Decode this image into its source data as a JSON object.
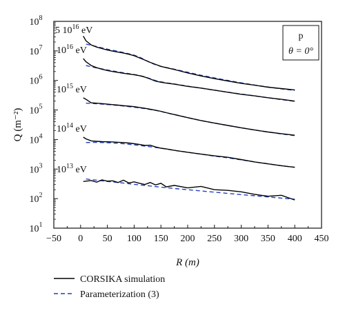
{
  "chart_data": {
    "type": "line",
    "xlabel": "R (m)",
    "ylabel": "Q (m⁻²)",
    "xlim": [
      -50,
      450
    ],
    "ylim_log10": [
      1,
      8
    ],
    "y_scale": "log",
    "grid": false,
    "x_ticks": [
      -50,
      0,
      50,
      100,
      150,
      200,
      250,
      300,
      350,
      400,
      450
    ],
    "y_ticks": [
      {
        "mantissa": "10",
        "exp": "1"
      },
      {
        "mantissa": "10",
        "exp": "2"
      },
      {
        "mantissa": "10",
        "exp": "3"
      },
      {
        "mantissa": "10",
        "exp": "4"
      },
      {
        "mantissa": "10",
        "exp": "5"
      },
      {
        "mantissa": "10",
        "exp": "6"
      },
      {
        "mantissa": "10",
        "exp": "7"
      },
      {
        "mantissa": "10",
        "exp": "8"
      }
    ],
    "annotation_box": {
      "line1": "p",
      "line2": "θ = 0°"
    },
    "energy_labels": [
      {
        "prefix": "5 10",
        "exp": "16",
        "unit": " eV"
      },
      {
        "prefix": "10",
        "exp": "16",
        "unit": " eV"
      },
      {
        "prefix": "10",
        "exp": "15",
        "unit": " eV"
      },
      {
        "prefix": "10",
        "exp": "14",
        "unit": " eV"
      },
      {
        "prefix": "10",
        "exp": "13",
        "unit": " eV"
      }
    ],
    "legend": {
      "placement": "bottom-left",
      "items": [
        {
          "label": "CORSIKA simulation",
          "style": "solid",
          "color": "#000000"
        },
        {
          "label": "Parameterization (3)",
          "style": "dashed",
          "color": "#1f3fbf"
        }
      ]
    },
    "x": [
      5,
      10,
      20,
      30,
      40,
      50,
      60,
      70,
      80,
      90,
      100,
      110,
      120,
      130,
      140,
      150,
      160,
      175,
      200,
      225,
      250,
      275,
      300,
      325,
      350,
      375,
      400
    ],
    "groups": [
      {
        "energy": "5 10^16 eV",
        "simulation": [
          31600000,
          22000000,
          15800000,
          13500000,
          12000000,
          10700000,
          9800000,
          9100000,
          8500000,
          7700000,
          6900000,
          5800000,
          4900000,
          4100000,
          3500000,
          3000000,
          2700000,
          2350000,
          1800000,
          1420000,
          1150000,
          960000,
          800000,
          690000,
          590000,
          530000,
          480000
        ],
        "parameterization": [
          null,
          17000000,
          15500000,
          14000000,
          12700000,
          11500000,
          10500000,
          9600000,
          8800000,
          8000000,
          7200000,
          6200000,
          5000000,
          4000000,
          3400000,
          3000000,
          2750000,
          2400000,
          1900000,
          1500000,
          1220000,
          1000000,
          830000,
          700000,
          600000,
          520000,
          460000
        ]
      },
      {
        "energy": "10^16 eV",
        "simulation": [
          5500000,
          4300000,
          3200000,
          2700000,
          2400000,
          2170000,
          2000000,
          1870000,
          1750000,
          1650000,
          1560000,
          1450000,
          1300000,
          1120000,
          950000,
          870000,
          810000,
          750000,
          630000,
          550000,
          470000,
          400000,
          340000,
          300000,
          260000,
          230000,
          200000
        ],
        "parameterization": [
          null,
          3200000,
          2900000,
          2650000,
          2450000,
          2270000,
          2100000,
          1950000,
          1820000,
          1700000,
          1590000,
          1470000,
          1320000,
          1150000,
          990000,
          900000,
          830000,
          760000,
          640000,
          550000,
          470000,
          400000,
          345000,
          300000,
          260000,
          225000,
          195000
        ]
      },
      {
        "energy": "10^15 eV",
        "simulation": [
          260000,
          230000,
          175000,
          170000,
          165000,
          158000,
          152000,
          146000,
          140000,
          135000,
          130000,
          122000,
          114000,
          106000,
          98000,
          90000,
          81000,
          70000,
          55000,
          44000,
          36000,
          30000,
          25000,
          21000,
          18000,
          15800,
          14000
        ],
        "parameterization": [
          null,
          170000,
          167000,
          163000,
          158000,
          153000,
          148000,
          142000,
          136000,
          130000,
          124000,
          118000,
          111000,
          104000,
          97000,
          89000,
          80000,
          70000,
          55000,
          44000,
          36000,
          30000,
          25000,
          21000,
          18000,
          15500,
          13500
        ]
      },
      {
        "energy": "10^14 eV",
        "simulation": [
          12000,
          10500,
          9000,
          8700,
          8500,
          8400,
          8300,
          8100,
          7900,
          7600,
          7200,
          6800,
          6300,
          6400,
          5600,
          5100,
          4800,
          4300,
          3700,
          3200,
          2800,
          2500,
          2100,
          1750,
          1500,
          1300,
          1150
        ],
        "parameterization": [
          null,
          7900,
          8000,
          8000,
          7900,
          7800,
          7600,
          7400,
          7200,
          6900,
          6600,
          6300,
          6000,
          5700,
          5400,
          5100,
          4800,
          4300,
          3700,
          3200,
          2750,
          2400,
          2050,
          1750,
          1500,
          1300,
          1150
        ]
      },
      {
        "energy": "10^13 eV",
        "simulation": [
          380,
          390,
          410,
          360,
          430,
          390,
          400,
          350,
          420,
          340,
          370,
          330,
          300,
          350,
          290,
          330,
          250,
          280,
          230,
          260,
          200,
          190,
          170,
          140,
          120,
          130,
          90
        ],
        "parameterization": [
          null,
          460,
          440,
          420,
          400,
          380,
          365,
          350,
          335,
          320,
          305,
          290,
          280,
          268,
          255,
          244,
          234,
          220,
          200,
          182,
          165,
          150,
          137,
          125,
          114,
          104,
          95
        ]
      }
    ]
  }
}
